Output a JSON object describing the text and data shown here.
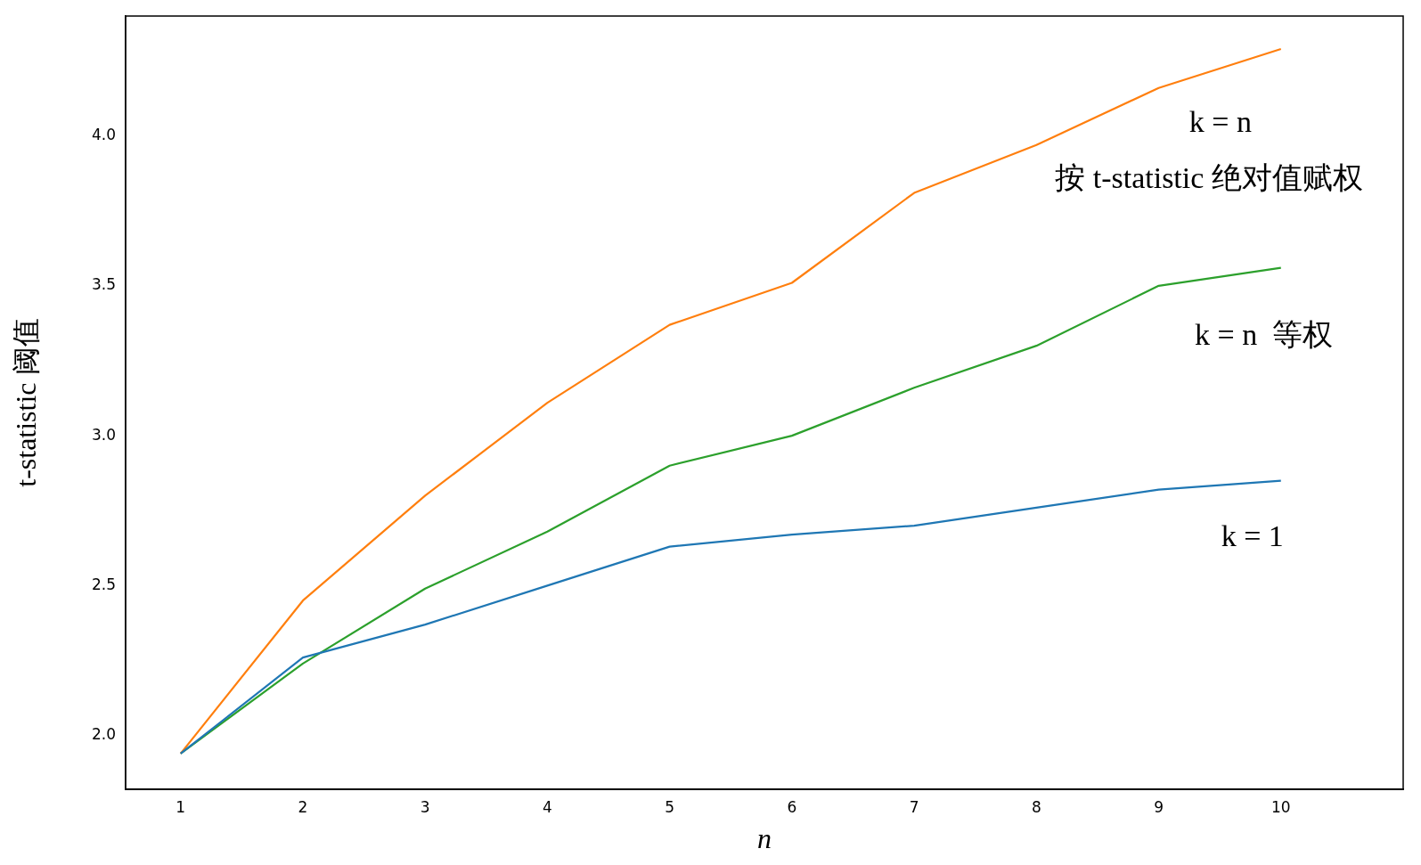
{
  "chart_data": {
    "type": "line",
    "xlabel": "n",
    "ylabel": "t-statistic 阈值",
    "x": [
      1,
      2,
      3,
      4,
      5,
      6,
      7,
      8,
      9,
      10
    ],
    "series": [
      {
        "color": "#1f77b4",
        "values": [
          1.94,
          2.26,
          2.37,
          2.5,
          2.63,
          2.67,
          2.7,
          2.76,
          2.82,
          2.85
        ]
      },
      {
        "color": "#ff7f0e",
        "values": [
          1.94,
          2.45,
          2.8,
          3.11,
          3.37,
          3.51,
          3.81,
          3.97,
          4.16,
          4.29
        ]
      },
      {
        "color": "#2ca02c",
        "values": [
          1.94,
          2.24,
          2.49,
          2.68,
          2.9,
          3.0,
          3.16,
          3.3,
          3.5,
          3.56
        ]
      }
    ],
    "xlim": [
      0.55,
      11
    ],
    "ylim": [
      1.82,
      4.4
    ],
    "xticks": [
      1,
      2,
      3,
      4,
      5,
      6,
      7,
      8,
      9,
      10
    ],
    "yticks": [
      {
        "value": 2,
        "label": "2.0"
      },
      {
        "value": 2.5,
        "label": "2.5"
      },
      {
        "value": 3,
        "label": "3.0"
      },
      {
        "value": 3.5,
        "label": "3.5"
      },
      {
        "value": 4,
        "label": "4.0"
      }
    ],
    "annotations": [
      "k = n",
      "按 t-statistic 绝对值赋权",
      "k = n  等权",
      "k = 1"
    ],
    "grid": false,
    "legend": false,
    "marker": "none",
    "line_style": "solid"
  }
}
